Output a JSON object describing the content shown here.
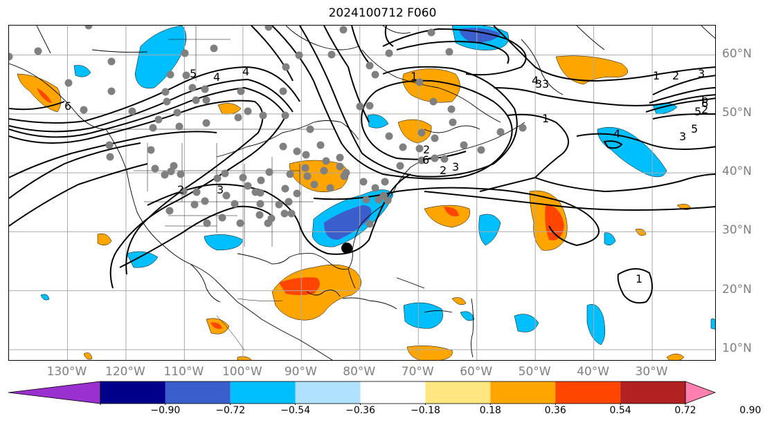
{
  "title": "2024100712 F060",
  "colors": {
    "land_outline": "#000000",
    "grid": "#aaaaaa",
    "contour": "#000000",
    "station_dot": "#808080",
    "gray_label": "#7f7f7f"
  },
  "map": {
    "projection": "PlateCarree",
    "extent": {
      "lon_min": -140,
      "lon_max": -19,
      "lat_min": 8,
      "lat_max": 65
    },
    "grid": true,
    "lat_labels": [
      "10°N",
      "20°N",
      "30°N",
      "40°N",
      "50°N",
      "60°N"
    ],
    "lon_labels": [
      "130°W",
      "120°W",
      "110°W",
      "100°W",
      "90°W",
      "80°W",
      "70°W",
      "60°W",
      "50°W",
      "40°W",
      "30°W"
    ],
    "lat_values": [
      10,
      20,
      30,
      40,
      50,
      60
    ],
    "lon_values": [
      -130,
      -120,
      -110,
      -100,
      -90,
      -80,
      -70,
      -60,
      -50,
      -40,
      -30
    ]
  },
  "colorbar": {
    "ticks": [
      "−0.90",
      "−0.72",
      "−0.54",
      "−0.36",
      "−0.18",
      "0.18",
      "0.36",
      "0.54",
      "0.72",
      "0.90"
    ],
    "tick_values": [
      -0.9,
      -0.72,
      -0.54,
      -0.36,
      -0.18,
      0.18,
      0.36,
      0.54,
      0.72,
      0.9
    ],
    "under_color": "#9b30d0",
    "over_color": "#ff80b0",
    "bin_colors": [
      "#00008b",
      "#3a5fcd",
      "#00bfff",
      "#b0e2ff",
      "#ffffff",
      "#ffe680",
      "#ffa500",
      "#ff4500",
      "#b22222"
    ],
    "extend": "both"
  },
  "contour_labels": [
    "1",
    "2",
    "3",
    "4",
    "5",
    "6",
    "1",
    "2",
    "3",
    "6",
    "5",
    "4",
    "3",
    "2",
    "1",
    "3",
    "6",
    "2",
    "3",
    "1",
    "2",
    "3",
    "5",
    "6",
    "4",
    "4"
  ],
  "station_dots_count": 118
}
